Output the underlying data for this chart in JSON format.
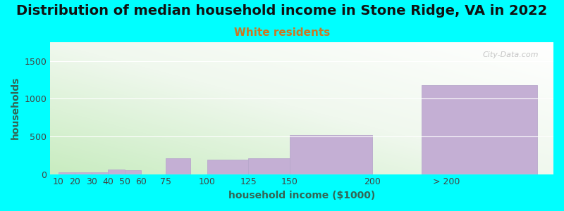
{
  "title": "Distribution of median household income in Stone Ridge, VA in 2022",
  "subtitle": "White residents",
  "xlabel": "household income ($1000)",
  "ylabel": "households",
  "background_color": "#00FFFF",
  "bar_color": "#c4afd4",
  "bar_edge_color": "#b8a8cc",
  "gradient_colors": [
    "#d8f0d0",
    "#f5faf0",
    "#ffffff"
  ],
  "categories": [
    "10",
    "20",
    "30",
    "40",
    "50",
    "60",
    "75",
    "100",
    "125",
    "150",
    "200",
    "> 200"
  ],
  "left_edges": [
    10,
    20,
    30,
    40,
    50,
    60,
    75,
    100,
    125,
    150,
    200,
    230
  ],
  "widths": [
    10,
    10,
    10,
    10,
    10,
    10,
    15,
    25,
    25,
    50,
    30,
    70
  ],
  "values": [
    20,
    20,
    20,
    65,
    55,
    0,
    210,
    195,
    210,
    520,
    0,
    1180
  ],
  "ylim": [
    0,
    1750
  ],
  "yticks": [
    0,
    500,
    1000,
    1500
  ],
  "title_fontsize": 14,
  "subtitle_fontsize": 11,
  "subtitle_color": "#cc7722",
  "axis_label_fontsize": 10,
  "tick_fontsize": 9,
  "watermark": "City-Data.com",
  "tick_positions": [
    10,
    20,
    30,
    40,
    50,
    60,
    75,
    100,
    125,
    150,
    200,
    245
  ],
  "tick_labels": [
    "10",
    "20",
    "30",
    "40",
    "50",
    "60",
    "75",
    "100",
    "125",
    "150",
    "200",
    "> 200"
  ]
}
